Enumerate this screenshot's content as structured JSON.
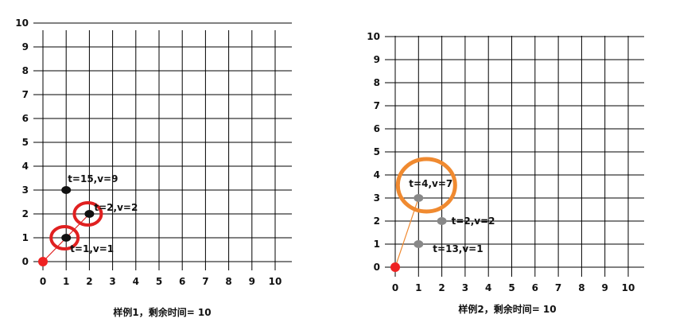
{
  "panels": [
    {
      "caption": "样例1，剩余时间= 10",
      "y_ticks": [
        "0",
        "1",
        "2",
        "3",
        "4",
        "5",
        "6",
        "7",
        "8",
        "9",
        "10"
      ],
      "x_ticks": [
        "0",
        "1",
        "2",
        "3",
        "4",
        "5",
        "6",
        "7",
        "8",
        "9",
        "10"
      ],
      "start_point": {
        "x": 0,
        "y": 0,
        "color": "#ee2222"
      },
      "points": [
        {
          "x": 1,
          "y": 3,
          "color": "#111111",
          "label": "t=15,v=9",
          "circled": false
        },
        {
          "x": 2,
          "y": 2,
          "color": "#111111",
          "label": "t=2,v=2",
          "circled": true
        },
        {
          "x": 1,
          "y": 1,
          "color": "#111111",
          "label": "t=1,v=1",
          "circled": true
        }
      ],
      "circle_color": "#e02020",
      "path": [
        [
          0,
          0
        ],
        [
          1,
          1
        ],
        [
          2,
          2
        ]
      ],
      "path_color": "#e02020"
    },
    {
      "caption": "样例2，剩余时间= 10",
      "y_ticks": [
        "0",
        "1",
        "2",
        "3",
        "4",
        "5",
        "6",
        "7",
        "8",
        "9",
        "10"
      ],
      "x_ticks": [
        "0",
        "1",
        "2",
        "3",
        "4",
        "5",
        "6",
        "7",
        "8",
        "9",
        "10"
      ],
      "start_point": {
        "x": 0,
        "y": 0,
        "color": "#ee2222"
      },
      "points": [
        {
          "x": 1,
          "y": 3,
          "color": "#888888",
          "label": "t=4,v=7",
          "circled": true
        },
        {
          "x": 2,
          "y": 2,
          "color": "#888888",
          "label": "t=2,v=2",
          "circled": false
        },
        {
          "x": 1,
          "y": 1,
          "color": "#888888",
          "label": "t=13,v=1",
          "circled": false
        }
      ],
      "circle_color": "#f08a30",
      "path": [
        [
          0,
          0
        ],
        [
          1,
          3
        ]
      ],
      "path_color": "#f08a30"
    }
  ]
}
